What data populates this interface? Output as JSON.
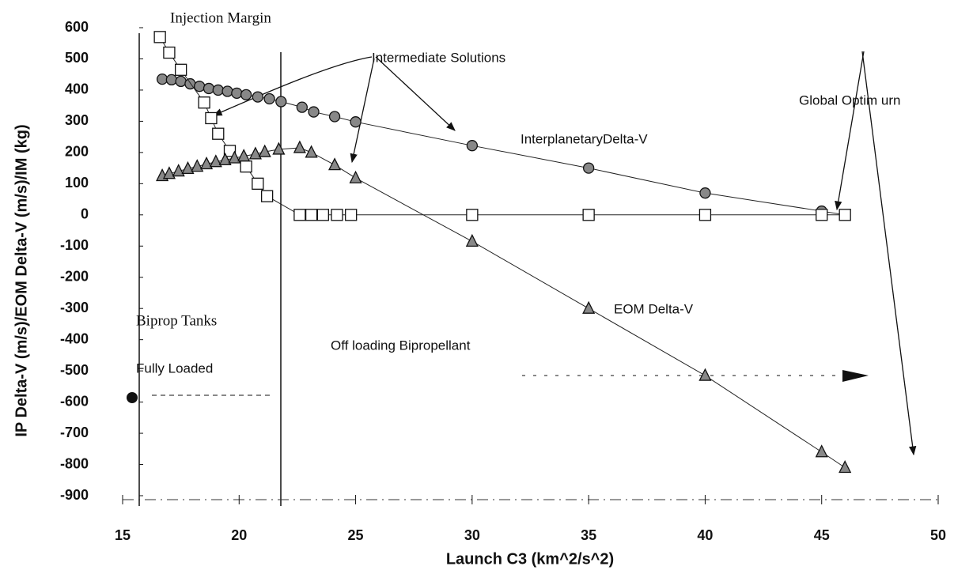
{
  "chart_data": {
    "type": "line",
    "xlabel": "Launch C3 (km^2/s^2)",
    "ylabel": "IP Delta-V (m/s)/EOM Delta-V (m/s)/IM (kg)",
    "xlim": [
      15,
      50
    ],
    "xticks": [
      15,
      20,
      25,
      30,
      35,
      40,
      45,
      50
    ],
    "ylim": [
      -900,
      600
    ],
    "yticks": [
      600,
      500,
      400,
      300,
      200,
      100,
      0,
      -100,
      -200,
      -300,
      -400,
      -500,
      -600,
      -700,
      -800,
      -900
    ],
    "series": [
      {
        "marker": "circle",
        "color": "#888888",
        "x": [
          16.7,
          17.1,
          17.5,
          17.9,
          18.3,
          18.7,
          19.1,
          19.5,
          19.9,
          20.3,
          20.8,
          21.3,
          21.8,
          22.7,
          23.2,
          24.1,
          25,
          30,
          35,
          40,
          45,
          46
        ],
        "values": [
          435,
          433,
          428,
          420,
          412,
          405,
          400,
          396,
          390,
          385,
          378,
          372,
          363,
          345,
          330,
          315,
          298,
          222,
          150,
          70,
          12,
          0
        ]
      },
      {
        "marker": "square",
        "color": "#ffffff",
        "x": [
          16.6,
          17,
          17.5,
          18.5,
          18.8,
          19.1,
          19.6,
          20.3,
          20.8,
          21.2,
          22.6,
          23.1,
          23.6,
          24.2,
          24.8,
          30,
          35,
          40,
          45,
          46
        ],
        "values": [
          570,
          520,
          465,
          360,
          310,
          260,
          205,
          155,
          100,
          60,
          0,
          0,
          0,
          0,
          0,
          0,
          0,
          0,
          0,
          0
        ]
      },
      {
        "marker": "triangle",
        "color": "#888888",
        "x": [
          16.7,
          17,
          17.4,
          17.8,
          18.2,
          18.6,
          19,
          19.4,
          19.8,
          20.2,
          20.7,
          21.1,
          21.7,
          22.6,
          23.1,
          24.1,
          25,
          30,
          35,
          40,
          45,
          46
        ],
        "values": [
          125,
          132,
          140,
          148,
          155,
          163,
          170,
          176,
          182,
          188,
          195,
          202,
          210,
          215,
          200,
          160,
          118,
          -85,
          -300,
          -515,
          -760,
          -810
        ]
      }
    ],
    "annotations": [
      "Injection Margin",
      "Intermediate Solutions",
      "Global Optim urn",
      "InterplanetaryDelta-V",
      "EOM Delta-V",
      "Biprop Tanks",
      "Fully Loaded",
      "Off loading Bipropellant"
    ]
  }
}
